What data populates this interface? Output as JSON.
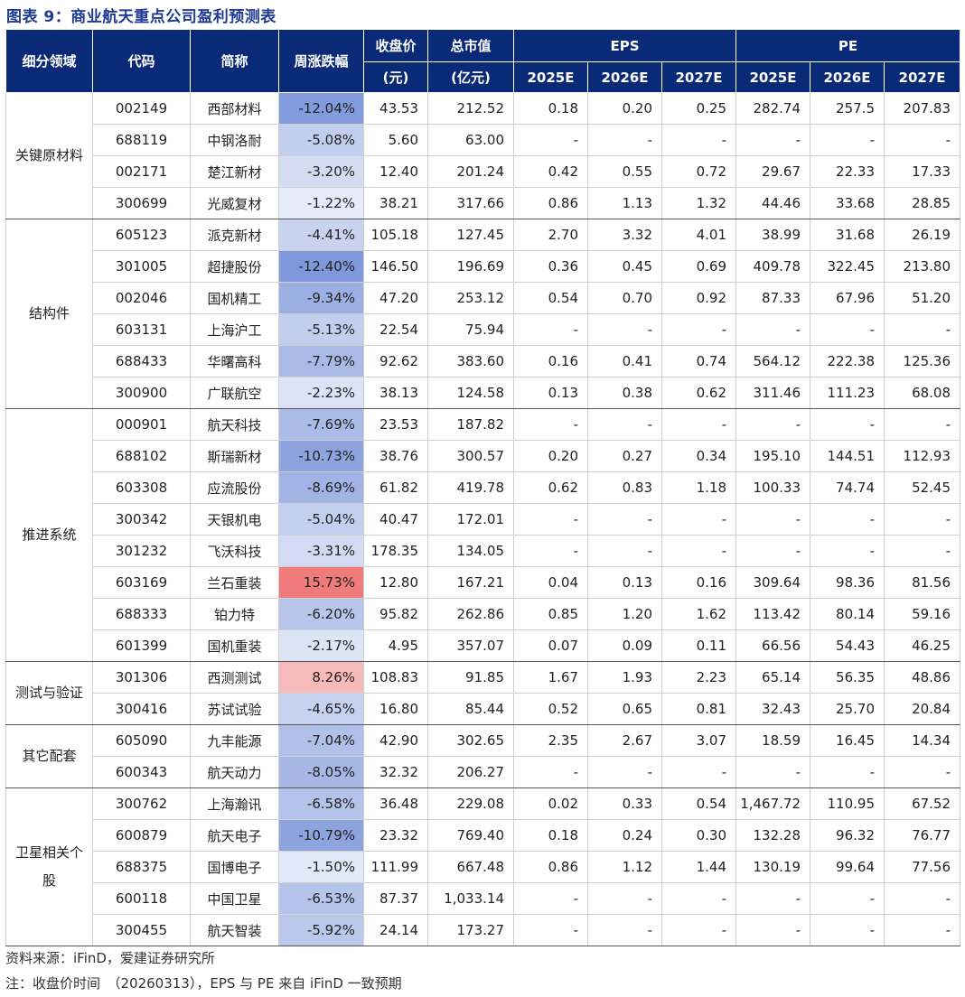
{
  "title": "图表 9：商业航天重点公司盈利预测表",
  "header": {
    "sector": "细分领域",
    "code": "代码",
    "name": "简称",
    "weekly_change": "周涨跌幅",
    "close_price": "收盘价",
    "close_price_unit": "(元)",
    "market_cap": "总市值",
    "market_cap_unit": "(亿元)",
    "eps": "EPS",
    "pe": "PE",
    "years": [
      "2025E",
      "2026E",
      "2027E"
    ]
  },
  "groups": [
    {
      "sector": "关键原材料",
      "rows": [
        {
          "code": "002149",
          "name": "西部材料",
          "change": "-12.04%",
          "change_value": -12.04,
          "price": "43.53",
          "cap": "212.52",
          "eps": [
            "0.18",
            "0.20",
            "0.25"
          ],
          "pe": [
            "282.74",
            "257.5",
            "207.83"
          ]
        },
        {
          "code": "688119",
          "name": "中钢洛耐",
          "change": "-5.08%",
          "change_value": -5.08,
          "price": "5.60",
          "cap": "63.00",
          "eps": [
            "-",
            "-",
            "-"
          ],
          "pe": [
            "-",
            "-",
            "-"
          ]
        },
        {
          "code": "002171",
          "name": "楚江新材",
          "change": "-3.20%",
          "change_value": -3.2,
          "price": "12.40",
          "cap": "201.24",
          "eps": [
            "0.42",
            "0.55",
            "0.72"
          ],
          "pe": [
            "29.67",
            "22.33",
            "17.33"
          ]
        },
        {
          "code": "300699",
          "name": "光威复材",
          "change": "-1.22%",
          "change_value": -1.22,
          "price": "38.21",
          "cap": "317.66",
          "eps": [
            "0.86",
            "1.13",
            "1.32"
          ],
          "pe": [
            "44.46",
            "33.68",
            "28.85"
          ]
        }
      ]
    },
    {
      "sector": "结构件",
      "rows": [
        {
          "code": "605123",
          "name": "派克新材",
          "change": "-4.41%",
          "change_value": -4.41,
          "price": "105.18",
          "cap": "127.45",
          "eps": [
            "2.70",
            "3.32",
            "4.01"
          ],
          "pe": [
            "38.99",
            "31.68",
            "26.19"
          ]
        },
        {
          "code": "301005",
          "name": "超捷股份",
          "change": "-12.40%",
          "change_value": -12.4,
          "price": "146.50",
          "cap": "196.69",
          "eps": [
            "0.36",
            "0.45",
            "0.69"
          ],
          "pe": [
            "409.78",
            "322.45",
            "213.80"
          ]
        },
        {
          "code": "002046",
          "name": "国机精工",
          "change": "-9.34%",
          "change_value": -9.34,
          "price": "47.20",
          "cap": "253.12",
          "eps": [
            "0.54",
            "0.70",
            "0.92"
          ],
          "pe": [
            "87.33",
            "67.96",
            "51.20"
          ]
        },
        {
          "code": "603131",
          "name": "上海沪工",
          "change": "-5.13%",
          "change_value": -5.13,
          "price": "22.54",
          "cap": "75.94",
          "eps": [
            "-",
            "-",
            "-"
          ],
          "pe": [
            "-",
            "-",
            "-"
          ]
        },
        {
          "code": "688433",
          "name": "华曙高科",
          "change": "-7.79%",
          "change_value": -7.79,
          "price": "92.62",
          "cap": "383.60",
          "eps": [
            "0.16",
            "0.41",
            "0.74"
          ],
          "pe": [
            "564.12",
            "222.38",
            "125.36"
          ]
        },
        {
          "code": "300900",
          "name": "广联航空",
          "change": "-2.23%",
          "change_value": -2.23,
          "price": "38.13",
          "cap": "124.58",
          "eps": [
            "0.13",
            "0.38",
            "0.62"
          ],
          "pe": [
            "311.46",
            "111.23",
            "68.08"
          ]
        }
      ]
    },
    {
      "sector": "推进系统",
      "rows": [
        {
          "code": "000901",
          "name": "航天科技",
          "change": "-7.69%",
          "change_value": -7.69,
          "price": "23.53",
          "cap": "187.82",
          "eps": [
            "-",
            "-",
            "-"
          ],
          "pe": [
            "-",
            "-",
            "-"
          ]
        },
        {
          "code": "688102",
          "name": "斯瑞新材",
          "change": "-10.73%",
          "change_value": -10.73,
          "price": "38.76",
          "cap": "300.57",
          "eps": [
            "0.20",
            "0.27",
            "0.34"
          ],
          "pe": [
            "195.10",
            "144.51",
            "112.93"
          ]
        },
        {
          "code": "603308",
          "name": "应流股份",
          "change": "-8.69%",
          "change_value": -8.69,
          "price": "61.82",
          "cap": "419.78",
          "eps": [
            "0.62",
            "0.83",
            "1.18"
          ],
          "pe": [
            "100.33",
            "74.74",
            "52.45"
          ]
        },
        {
          "code": "300342",
          "name": "天银机电",
          "change": "-5.04%",
          "change_value": -5.04,
          "price": "40.47",
          "cap": "172.01",
          "eps": [
            "-",
            "-",
            "-"
          ],
          "pe": [
            "-",
            "-",
            "-"
          ]
        },
        {
          "code": "301232",
          "name": "飞沃科技",
          "change": "-3.31%",
          "change_value": -3.31,
          "price": "178.35",
          "cap": "134.05",
          "eps": [
            "-",
            "-",
            "-"
          ],
          "pe": [
            "-",
            "-",
            "-"
          ]
        },
        {
          "code": "603169",
          "name": "兰石重装",
          "change": "15.73%",
          "change_value": 15.73,
          "price": "12.80",
          "cap": "167.21",
          "eps": [
            "0.04",
            "0.13",
            "0.16"
          ],
          "pe": [
            "309.64",
            "98.36",
            "81.56"
          ]
        },
        {
          "code": "688333",
          "name": "铂力特",
          "change": "-6.20%",
          "change_value": -6.2,
          "price": "95.82",
          "cap": "262.86",
          "eps": [
            "0.85",
            "1.20",
            "1.62"
          ],
          "pe": [
            "113.42",
            "80.14",
            "59.16"
          ]
        },
        {
          "code": "601399",
          "name": "国机重装",
          "change": "-2.17%",
          "change_value": -2.17,
          "price": "4.95",
          "cap": "357.07",
          "eps": [
            "0.07",
            "0.09",
            "0.11"
          ],
          "pe": [
            "66.56",
            "54.43",
            "46.25"
          ]
        }
      ]
    },
    {
      "sector": "测试与验证",
      "rows": [
        {
          "code": "301306",
          "name": "西测测试",
          "change": "8.26%",
          "change_value": 8.26,
          "price": "108.83",
          "cap": "91.85",
          "eps": [
            "1.67",
            "1.93",
            "2.23"
          ],
          "pe": [
            "65.14",
            "56.35",
            "48.86"
          ]
        },
        {
          "code": "300416",
          "name": "苏试试验",
          "change": "-4.65%",
          "change_value": -4.65,
          "price": "16.80",
          "cap": "85.44",
          "eps": [
            "0.52",
            "0.65",
            "0.81"
          ],
          "pe": [
            "32.43",
            "25.70",
            "20.84"
          ]
        }
      ]
    },
    {
      "sector": "其它配套",
      "rows": [
        {
          "code": "605090",
          "name": "九丰能源",
          "change": "-7.04%",
          "change_value": -7.04,
          "price": "42.90",
          "cap": "302.65",
          "eps": [
            "2.35",
            "2.67",
            "3.07"
          ],
          "pe": [
            "18.59",
            "16.45",
            "14.34"
          ]
        },
        {
          "code": "600343",
          "name": "航天动力",
          "change": "-8.05%",
          "change_value": -8.05,
          "price": "32.32",
          "cap": "206.27",
          "eps": [
            "-",
            "-",
            "-"
          ],
          "pe": [
            "-",
            "-",
            "-"
          ]
        }
      ]
    },
    {
      "sector": "卫星相关个股",
      "rows": [
        {
          "code": "300762",
          "name": "上海瀚讯",
          "change": "-6.58%",
          "change_value": -6.58,
          "price": "36.48",
          "cap": "229.08",
          "eps": [
            "0.02",
            "0.33",
            "0.54"
          ],
          "pe": [
            "1,467.72",
            "110.95",
            "67.52"
          ]
        },
        {
          "code": "600879",
          "name": "航天电子",
          "change": "-10.79%",
          "change_value": -10.79,
          "price": "23.32",
          "cap": "769.40",
          "eps": [
            "0.18",
            "0.24",
            "0.30"
          ],
          "pe": [
            "132.28",
            "96.32",
            "76.77"
          ]
        },
        {
          "code": "688375",
          "name": "国博电子",
          "change": "-1.50%",
          "change_value": -1.5,
          "price": "111.99",
          "cap": "667.48",
          "eps": [
            "0.86",
            "1.12",
            "1.44"
          ],
          "pe": [
            "130.19",
            "99.64",
            "77.56"
          ]
        },
        {
          "code": "600118",
          "name": "中国卫星",
          "change": "-6.53%",
          "change_value": -6.53,
          "price": "87.37",
          "cap": "1,033.14",
          "eps": [
            "-",
            "-",
            "-"
          ],
          "pe": [
            "-",
            "-",
            "-"
          ]
        },
        {
          "code": "300455",
          "name": "航天智装",
          "change": "-5.92%",
          "change_value": -5.92,
          "price": "24.14",
          "cap": "173.27",
          "eps": [
            "-",
            "-",
            "-"
          ],
          "pe": [
            "-",
            "-",
            "-"
          ]
        }
      ]
    }
  ],
  "colors": {
    "header_bg": "#0a2a78",
    "title": "#1f3a93",
    "neg_scale_end": "#7f98db",
    "pos_scale_end": "#f07b7b"
  },
  "footer": {
    "source": "资料来源：iFinD，爱建证券研究所",
    "note": "注：收盘价时间　（20260313），EPS 与 PE 来自 iFinD 一致预期"
  }
}
